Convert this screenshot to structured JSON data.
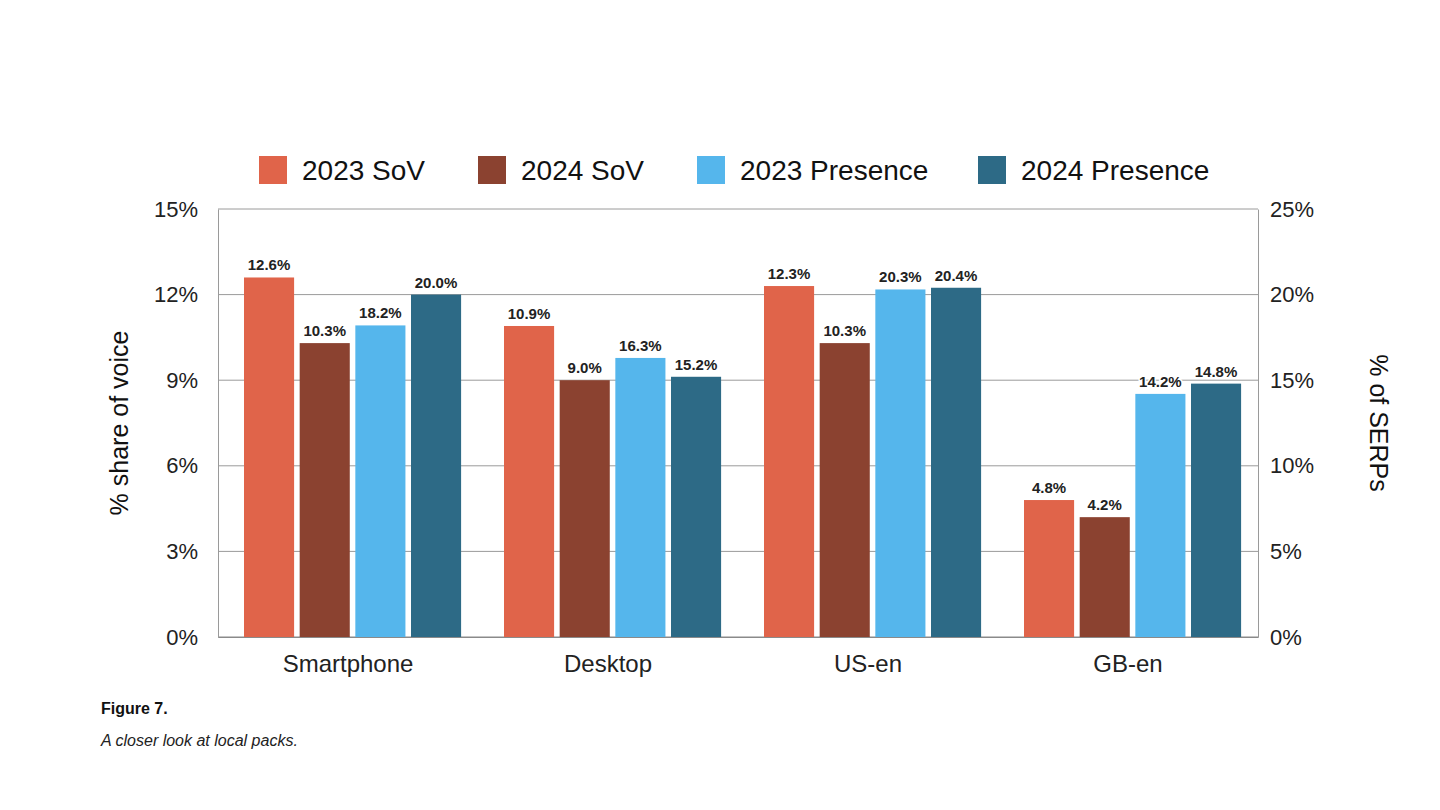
{
  "chart_data": {
    "type": "bar",
    "title": "Figure 7.",
    "subtitle": "A closer look at local packs.",
    "y_label": "% share of voice",
    "y2_label": "% of SERPs",
    "categories": [
      "Smartphone",
      "Desktop",
      "US-en",
      "GB-en"
    ],
    "series": [
      {
        "name": "2023 SoV",
        "color": "#e0644a",
        "values": [
          12.6,
          10.9,
          12.3,
          4.8
        ],
        "value_labels": [
          "12.6%",
          "10.9%",
          "12.3%",
          "4.8%"
        ]
      },
      {
        "name": "2024 SoV",
        "color": "#8b4230",
        "values": [
          10.3,
          9.0,
          10.3,
          4.2
        ],
        "value_labels": [
          "10.3%",
          "9.0%",
          "10.3%",
          "4.2%"
        ]
      },
      {
        "name": "2023 Presence",
        "color": "#55b6ec",
        "axis": "y2",
        "values": [
          18.2,
          16.3,
          20.3,
          14.2
        ],
        "value_labels": [
          "18.2%",
          "16.3%",
          "20.3%",
          "14.2%"
        ]
      },
      {
        "name": "2024 Presence",
        "color": "#2d6a86",
        "axis": "y2",
        "values": [
          20.0,
          15.2,
          20.4,
          14.8
        ],
        "value_labels": [
          "20.0%",
          "15.2%",
          "20.4%",
          "14.8%"
        ]
      }
    ],
    "ylim": [
      0,
      15
    ],
    "yticks": [
      {
        "value": 0,
        "label": "0%"
      },
      {
        "value": 3,
        "label": "3%"
      },
      {
        "value": 6,
        "label": "6%"
      },
      {
        "value": 9,
        "label": "9%"
      },
      {
        "value": 12,
        "label": "12%"
      },
      {
        "value": 15,
        "label": "15%"
      }
    ],
    "y2lim": [
      0,
      25
    ],
    "y2ticks": [
      {
        "value": 0,
        "label": "0%"
      },
      {
        "value": 5,
        "label": "5%"
      },
      {
        "value": 10,
        "label": "10%"
      },
      {
        "value": 15,
        "label": "15%"
      },
      {
        "value": 20,
        "label": "20%"
      },
      {
        "value": 25,
        "label": "25%"
      }
    ],
    "grid": true,
    "legend": "top",
    "data_labels": true
  }
}
